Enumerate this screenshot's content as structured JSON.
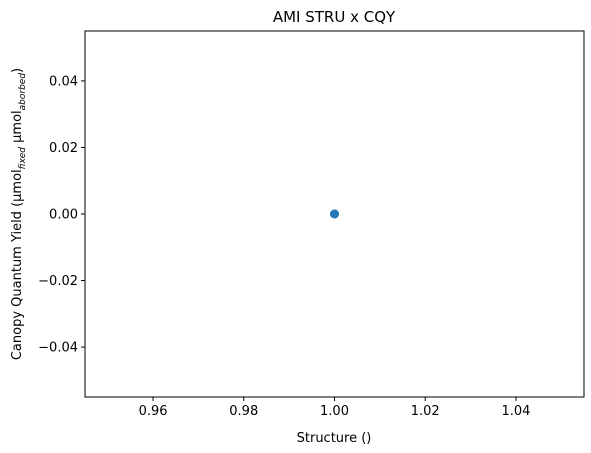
{
  "chart_data": {
    "type": "scatter",
    "title": "AMI STRU x CQY",
    "xlabel": "Structure ()",
    "ylabel": {
      "base": "Canopy Quantum Yield (μmol",
      "sub1": "fixed",
      "mid": " μmol",
      "sub2": "aborbed",
      "end": ")"
    },
    "xlim": [
      0.945,
      1.055
    ],
    "ylim": [
      -0.055,
      0.055
    ],
    "xticks": [
      {
        "value": 0.96,
        "label": "0.96"
      },
      {
        "value": 0.98,
        "label": "0.98"
      },
      {
        "value": 1.0,
        "label": "1.00"
      },
      {
        "value": 1.02,
        "label": "1.02"
      },
      {
        "value": 1.04,
        "label": "1.04"
      }
    ],
    "yticks": [
      {
        "value": 0.04,
        "label": "0.04"
      },
      {
        "value": 0.02,
        "label": "0.02"
      },
      {
        "value": 0.0,
        "label": "0.00"
      },
      {
        "value": -0.02,
        "label": "−0.02"
      },
      {
        "value": -0.04,
        "label": "−0.04"
      }
    ],
    "grid": false,
    "series": [
      {
        "color": "#1f77b4",
        "points": [
          {
            "x": 1.0,
            "y": 0.0
          },
          {
            "x": 1.0,
            "y": 0.0
          },
          {
            "x": 1.0,
            "y": 0.0
          }
        ]
      }
    ]
  }
}
